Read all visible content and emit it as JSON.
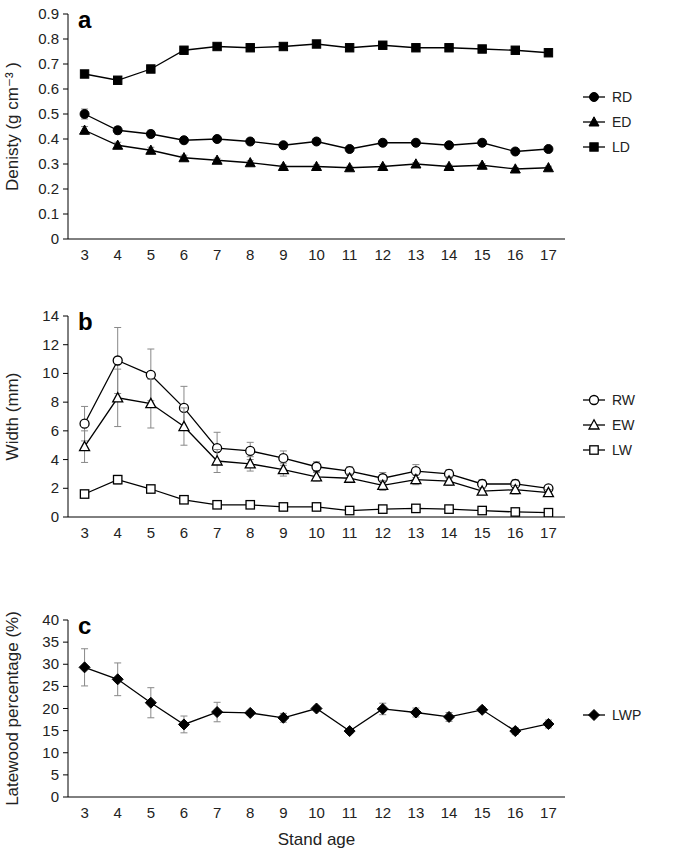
{
  "chart_data": [
    {
      "type": "line",
      "title": "a",
      "y_label": "Denisty (g cm⁻³ )",
      "categories": [
        "3",
        "4",
        "5",
        "6",
        "7",
        "8",
        "9",
        "10",
        "11",
        "12",
        "13",
        "14",
        "15",
        "16",
        "17"
      ],
      "ylim": [
        0,
        0.9
      ],
      "yticks": [
        0,
        0.1,
        0.2,
        0.3,
        0.4,
        0.5,
        0.6,
        0.7,
        0.8,
        0.9
      ],
      "legend": "right",
      "series": [
        {
          "name": "RD",
          "color": "#000000",
          "marker": "circle",
          "values": [
            0.5,
            0.435,
            0.42,
            0.395,
            0.4,
            0.39,
            0.375,
            0.39,
            0.36,
            0.385,
            0.385,
            0.375,
            0.385,
            0.35,
            0.36
          ],
          "errors": [
            0.02,
            0.015,
            0.015,
            0.01,
            0.01,
            0.008,
            0.008,
            0.008,
            0.008,
            0.008,
            0.008,
            0.008,
            0.008,
            0.008,
            0.008
          ]
        },
        {
          "name": "ED",
          "color": "#000000",
          "marker": "triangle",
          "values": [
            0.435,
            0.375,
            0.355,
            0.325,
            0.315,
            0.305,
            0.29,
            0.29,
            0.285,
            0.29,
            0.3,
            0.29,
            0.295,
            0.28,
            0.285
          ],
          "errors": [
            0.015,
            0.012,
            0.012,
            0.01,
            0.008,
            0.008,
            0.006,
            0.006,
            0.006,
            0.006,
            0.006,
            0.006,
            0.006,
            0.006,
            0.006
          ]
        },
        {
          "name": "LD",
          "color": "#000000",
          "marker": "square",
          "values": [
            0.66,
            0.635,
            0.68,
            0.755,
            0.77,
            0.765,
            0.77,
            0.78,
            0.765,
            0.775,
            0.765,
            0.765,
            0.76,
            0.755,
            0.745
          ],
          "errors": [
            0.01,
            0.01,
            0.01,
            0.008,
            0.008,
            0.006,
            0.006,
            0.006,
            0.006,
            0.006,
            0.006,
            0.006,
            0.006,
            0.006,
            0.006
          ]
        }
      ]
    },
    {
      "type": "line",
      "title": "b",
      "y_label": "Width (mm)",
      "categories": [
        "3",
        "4",
        "5",
        "6",
        "7",
        "8",
        "9",
        "10",
        "11",
        "12",
        "13",
        "14",
        "15",
        "16",
        "17"
      ],
      "ylim": [
        0,
        14
      ],
      "yticks": [
        0,
        2,
        4,
        6,
        8,
        10,
        12,
        14
      ],
      "legend": "right",
      "series": [
        {
          "name": "RW",
          "color": "#000000",
          "marker": "circle-open",
          "values": [
            6.5,
            10.9,
            9.9,
            7.6,
            4.8,
            4.6,
            4.1,
            3.5,
            3.2,
            2.7,
            3.2,
            3.0,
            2.3,
            2.3,
            2.0
          ],
          "errors": [
            1.2,
            2.3,
            1.8,
            1.5,
            1.1,
            0.6,
            0.5,
            0.35,
            0.3,
            0.4,
            0.45,
            0.3,
            0.3,
            0.3,
            0.2
          ]
        },
        {
          "name": "EW",
          "color": "#000000",
          "marker": "triangle-open",
          "values": [
            4.9,
            8.3,
            7.9,
            6.3,
            3.9,
            3.7,
            3.3,
            2.8,
            2.7,
            2.2,
            2.6,
            2.5,
            1.8,
            1.9,
            1.7
          ],
          "errors": [
            1.1,
            2.0,
            1.7,
            1.3,
            0.8,
            0.5,
            0.45,
            0.3,
            0.3,
            0.35,
            0.35,
            0.3,
            0.25,
            0.3,
            0.2
          ]
        },
        {
          "name": "LW",
          "color": "#000000",
          "marker": "square-open",
          "values": [
            1.6,
            2.6,
            1.95,
            1.2,
            0.85,
            0.85,
            0.7,
            0.7,
            0.45,
            0.55,
            0.6,
            0.55,
            0.45,
            0.35,
            0.3
          ],
          "errors": [
            0.2,
            0.3,
            0.2,
            0.15,
            0.1,
            0.1,
            0.1,
            0.1,
            0.08,
            0.08,
            0.08,
            0.08,
            0.08,
            0.06,
            0.06
          ]
        }
      ]
    },
    {
      "type": "line",
      "title": "c",
      "y_label": "Latewood percentage (%)",
      "x_label": "Stand age",
      "categories": [
        "3",
        "4",
        "5",
        "6",
        "7",
        "8",
        "9",
        "10",
        "11",
        "12",
        "13",
        "14",
        "15",
        "16",
        "17"
      ],
      "ylim": [
        0,
        40
      ],
      "yticks": [
        0,
        5,
        10,
        15,
        20,
        25,
        30,
        35,
        40
      ],
      "legend": "right",
      "series": [
        {
          "name": "LWP",
          "color": "#000000",
          "marker": "diamond",
          "values": [
            29.3,
            26.6,
            21.3,
            16.4,
            19.2,
            19.0,
            17.9,
            20.0,
            14.9,
            19.9,
            19.1,
            18.1,
            19.7,
            14.9,
            16.5
          ],
          "errors": [
            4.2,
            3.7,
            3.4,
            1.9,
            2.2,
            0.5,
            1.0,
            0.5,
            0.5,
            1.3,
            1.0,
            1.0,
            0.6,
            0.7,
            0.9
          ]
        }
      ]
    }
  ]
}
